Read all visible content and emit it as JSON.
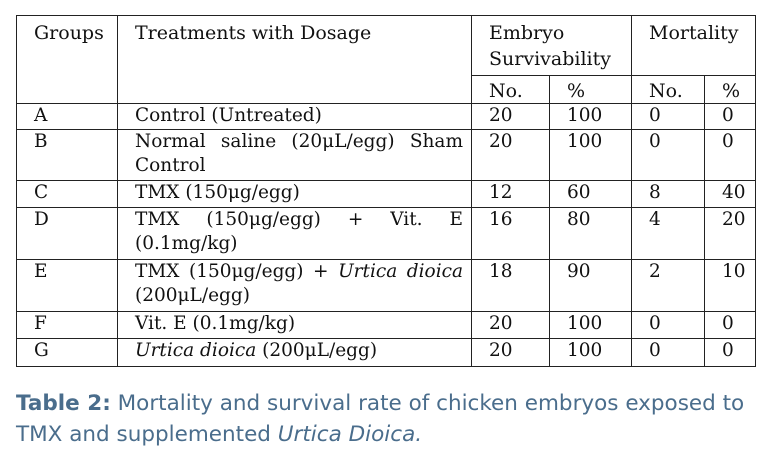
{
  "headers": {
    "groups": "Groups",
    "treatments": "Treatments with Dosage",
    "survivability": "Embryo Survivability",
    "mortality": "Mortality",
    "no1": "No.",
    "pct1": "%",
    "no2": "No.",
    "pct2": "%"
  },
  "rows": [
    {
      "group": "A",
      "treatment_parts": [
        "Control (Untreated)"
      ],
      "surv_no": "20",
      "surv_pct": "100",
      "mort_no": "0",
      "mort_pct": "0"
    },
    {
      "group": "B",
      "treatment_parts": [
        "Normal saline (20μL/egg) Sham Control"
      ],
      "surv_no": "20",
      "surv_pct": "100",
      "mort_no": "0",
      "mort_pct": "0"
    },
    {
      "group": "C",
      "treatment_parts": [
        "TMX (150μg/egg)"
      ],
      "surv_no": "12",
      "surv_pct": "60",
      "mort_no": "8",
      "mort_pct": "40"
    },
    {
      "group": "D",
      "treatment_parts": [
        "TMX (150μg/egg) + Vit. E (0.1mg/kg)"
      ],
      "surv_no": "16",
      "surv_pct": "80",
      "mort_no": "4",
      "mort_pct": "20"
    },
    {
      "group": "E",
      "treatment_parts": [
        "TMX (150μg/egg) + ",
        "Urtica dioica",
        " (200μL/egg)"
      ],
      "surv_no": "18",
      "surv_pct": "90",
      "mort_no": "2",
      "mort_pct": "10"
    },
    {
      "group": "F",
      "treatment_parts": [
        "Vit. E (0.1mg/kg)"
      ],
      "surv_no": "20",
      "surv_pct": "100",
      "mort_no": "0",
      "mort_pct": "0"
    },
    {
      "group": "G",
      "treatment_parts": [
        "Urtica dioica",
        " (200μL/egg)"
      ],
      "surv_no": "20",
      "surv_pct": "100",
      "mort_no": "0",
      "mort_pct": "0"
    }
  ],
  "caption": {
    "label": "Table 2:",
    "text": " Mortality and survival rate of chicken embryos exposed to TMX and supplemented ",
    "italic": "Urtica Dioica."
  }
}
